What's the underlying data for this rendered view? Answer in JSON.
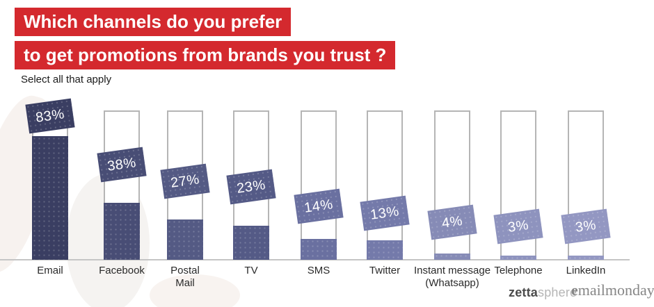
{
  "header": {
    "title_line1": "Which channels do you prefer",
    "title_line2": "to get promotions from brands you trust ?",
    "subtitle": "Select all that apply",
    "accent_color": "#d4292e",
    "title_text_color": "#ffffff"
  },
  "chart_data": {
    "type": "bar",
    "title": "Which channels do you prefer to get promotions from brands you trust ?",
    "subtitle": "Select all that apply",
    "categories": [
      "Email",
      "Facebook",
      "Postal Mail",
      "TV",
      "SMS",
      "Twitter",
      "Instant message (Whatsapp)",
      "Telephone",
      "LinkedIn"
    ],
    "category_lines": [
      [
        "Email"
      ],
      [
        "Facebook"
      ],
      [
        "Postal",
        "Mail"
      ],
      [
        "TV"
      ],
      [
        "SMS"
      ],
      [
        "Twitter"
      ],
      [
        "Instant message",
        "(Whatsapp)"
      ],
      [
        "Telephone"
      ],
      [
        "LinkedIn"
      ]
    ],
    "values": [
      83,
      38,
      27,
      23,
      14,
      13,
      4,
      3,
      3
    ],
    "value_labels": [
      "83%",
      "38%",
      "27%",
      "23%",
      "14%",
      "13%",
      "4%",
      "3%",
      "3%"
    ],
    "unit": "percent",
    "ylim": [
      0,
      100
    ],
    "grid": false,
    "legend": false,
    "bar_colors": [
      "#3a3e62",
      "#484d75",
      "#545a84",
      "#545a86",
      "#6a70a0",
      "#747aaa",
      "#868bb6",
      "#8e93be",
      "#9397c2"
    ],
    "track_fill": "#ffffff",
    "track_border": "#b5b5b5",
    "baseline_color": "#c5c5c5",
    "value_text_color": "#ffffff",
    "category_text_color": "#2a2a2a"
  },
  "footer": {
    "zettasphere_bold": "zetta",
    "zettasphere_light": "sphere",
    "emailmonday_bold": "e",
    "emailmonday_rest": "mailmonday"
  }
}
